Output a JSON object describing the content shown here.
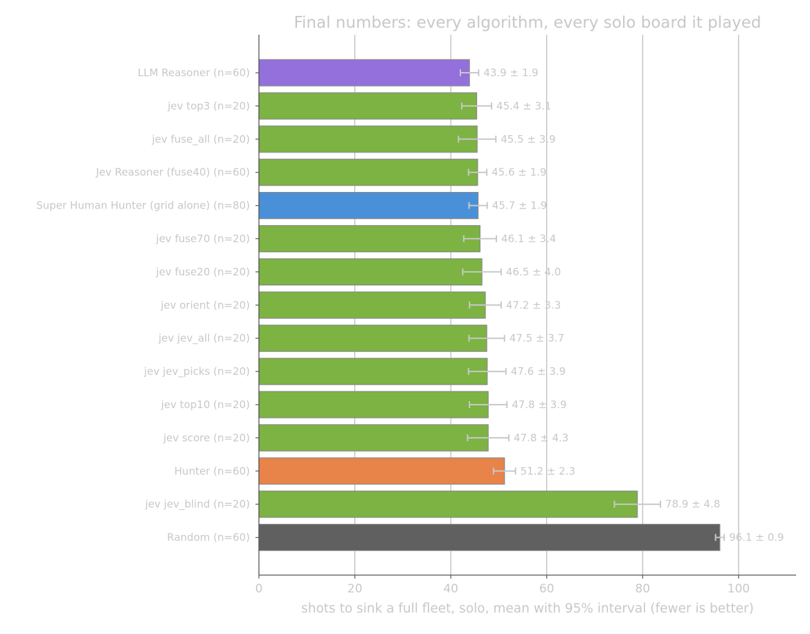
{
  "chart_data": {
    "type": "bar",
    "orientation": "horizontal",
    "title": "Final numbers: every algorithm, every solo board it played",
    "xlabel": "shots to sink a full fleet, solo, mean with 95% interval (fewer is better)",
    "ylabel": "",
    "xlim": [
      0,
      112
    ],
    "x_ticks": [
      0,
      20,
      40,
      60,
      80,
      100
    ],
    "grid": "vertical lines at x ticks",
    "bars": [
      {
        "label": "LLM Reasoner  (n=60)",
        "value": 43.9,
        "ci": 1.9,
        "value_label": "43.9 ± 1.9",
        "color": "#9370db"
      },
      {
        "label": "jev top3  (n=20)",
        "value": 45.4,
        "ci": 3.1,
        "value_label": "45.4 ± 3.1",
        "color": "#7cb342"
      },
      {
        "label": "jev fuse_all  (n=20)",
        "value": 45.5,
        "ci": 3.9,
        "value_label": "45.5 ± 3.9",
        "color": "#7cb342"
      },
      {
        "label": "Jev Reasoner (fuse40)  (n=60)",
        "value": 45.6,
        "ci": 1.9,
        "value_label": "45.6 ± 1.9",
        "color": "#7cb342"
      },
      {
        "label": "Super Human Hunter (grid alone)  (n=80)",
        "value": 45.7,
        "ci": 1.9,
        "value_label": "45.7 ± 1.9",
        "color": "#4a90d9"
      },
      {
        "label": "jev fuse70  (n=20)",
        "value": 46.1,
        "ci": 3.4,
        "value_label": "46.1 ± 3.4",
        "color": "#7cb342"
      },
      {
        "label": "jev fuse20  (n=20)",
        "value": 46.5,
        "ci": 4.0,
        "value_label": "46.5 ± 4.0",
        "color": "#7cb342"
      },
      {
        "label": "jev orient  (n=20)",
        "value": 47.2,
        "ci": 3.3,
        "value_label": "47.2 ± 3.3",
        "color": "#7cb342"
      },
      {
        "label": "jev jev_all  (n=20)",
        "value": 47.5,
        "ci": 3.7,
        "value_label": "47.5 ± 3.7",
        "color": "#7cb342"
      },
      {
        "label": "jev jev_picks  (n=20)",
        "value": 47.6,
        "ci": 3.9,
        "value_label": "47.6 ± 3.9",
        "color": "#7cb342"
      },
      {
        "label": "jev top10  (n=20)",
        "value": 47.8,
        "ci": 3.9,
        "value_label": "47.8 ± 3.9",
        "color": "#7cb342"
      },
      {
        "label": "jev score  (n=20)",
        "value": 47.8,
        "ci": 4.3,
        "value_label": "47.8 ± 4.3",
        "color": "#7cb342"
      },
      {
        "label": "Hunter  (n=60)",
        "value": 51.2,
        "ci": 2.3,
        "value_label": "51.2 ± 2.3",
        "color": "#e8834a"
      },
      {
        "label": "jev jev_blind  (n=20)",
        "value": 78.9,
        "ci": 4.8,
        "value_label": "78.9 ± 4.8",
        "color": "#7cb342"
      },
      {
        "label": "Random  (n=60)",
        "value": 96.1,
        "ci": 0.9,
        "value_label": "96.1 ± 0.9",
        "color": "#606060"
      }
    ]
  }
}
